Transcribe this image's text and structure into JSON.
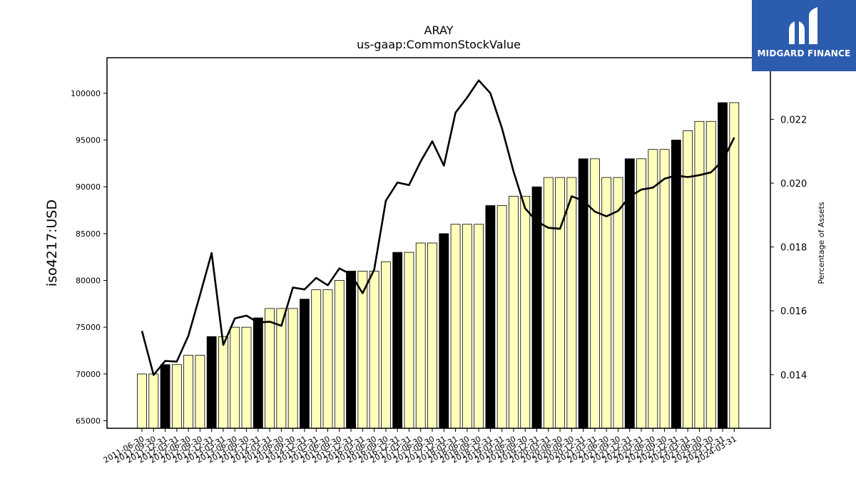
{
  "chart_data": {
    "type": "bar",
    "title": "ARAY",
    "subtitle": "us-gaap:CommonStockValue",
    "ylabel": "iso4217:USD",
    "y2label": "Percentage of Assets",
    "ylim": [
      64200,
      103800
    ],
    "y2lim": [
      0.01232,
      0.02393
    ],
    "yticks": [
      65000,
      70000,
      75000,
      80000,
      85000,
      90000,
      95000,
      100000
    ],
    "y2ticks": [
      "0.014",
      "0.016",
      "0.018",
      "0.020",
      "0.022"
    ],
    "categories": [
      "2011-06-30",
      "2011-09-30",
      "2011-12-31",
      "2012-03-31",
      "2012-06-30",
      "2012-09-30",
      "2012-12-31",
      "2013-03-31",
      "2013-06-30",
      "2013-09-30",
      "2013-12-31",
      "2014-03-31",
      "2014-06-30",
      "2014-09-30",
      "2014-12-31",
      "2015-03-31",
      "2015-06-30",
      "2015-09-30",
      "2015-12-31",
      "2016-03-31",
      "2016-06-30",
      "2016-09-30",
      "2016-12-31",
      "2017-03-31",
      "2017-06-30",
      "2017-09-30",
      "2017-12-31",
      "2018-03-31",
      "2018-06-30",
      "2018-09-30",
      "2018-12-31",
      "2019-03-31",
      "2019-06-30",
      "2019-09-30",
      "2019-12-31",
      "2020-03-31",
      "2020-06-30",
      "2020-09-30",
      "2020-12-31",
      "2021-03-31",
      "2021-06-30",
      "2021-09-30",
      "2021-12-31",
      "2022-03-31",
      "2022-06-30",
      "2022-09-30",
      "2022-12-31",
      "2023-03-31",
      "2023-06-30",
      "2023-09-30",
      "2023-12-31",
      "2024-03-31"
    ],
    "series": [
      {
        "values": [
          70000,
          70000,
          71000,
          71000,
          72000,
          72000,
          74000,
          74000,
          75000,
          75000,
          76000,
          77000,
          77000,
          77000,
          78000,
          79000,
          79000,
          80000,
          81000,
          81000,
          81000,
          82000,
          83000,
          83000,
          84000,
          84000,
          85000,
          86000,
          86000,
          86000,
          88000,
          88000,
          89000,
          89000,
          90000,
          91000,
          91000,
          91000,
          93000,
          93000,
          91000,
          91000,
          93000,
          93000,
          94000,
          94000,
          95000,
          96000,
          97000,
          97000,
          99000,
          99000
        ],
        "highlight": [
          false,
          false,
          true,
          false,
          false,
          false,
          true,
          false,
          false,
          false,
          true,
          false,
          false,
          false,
          true,
          false,
          false,
          false,
          true,
          false,
          false,
          false,
          true,
          false,
          false,
          false,
          true,
          false,
          false,
          false,
          true,
          false,
          false,
          false,
          true,
          false,
          false,
          false,
          true,
          false,
          false,
          false,
          true,
          false,
          false,
          false,
          true,
          false,
          false,
          false,
          true,
          false
        ]
      },
      {
        "values": [
          0.01537,
          0.01399,
          0.01443,
          0.01441,
          0.01522,
          0.0165,
          0.01781,
          0.01493,
          0.01576,
          0.01585,
          0.01563,
          0.01566,
          0.01553,
          0.01673,
          0.01667,
          0.01703,
          0.0168,
          0.01733,
          0.01714,
          0.01655,
          0.01729,
          0.01945,
          0.02002,
          0.01994,
          0.02068,
          0.02131,
          0.02055,
          0.02221,
          0.02268,
          0.02322,
          0.02282,
          0.02172,
          0.02036,
          0.01921,
          0.0188,
          0.0186,
          0.01857,
          0.01959,
          0.01945,
          0.01911,
          0.01896,
          0.01913,
          0.01958,
          0.0198,
          0.01986,
          0.02014,
          0.02024,
          0.02019,
          0.02025,
          0.02034,
          0.0207,
          0.02143
        ]
      }
    ],
    "bar_color": "#ffffbb",
    "highlight_color": "#000000",
    "line_color": "#000000",
    "legend": "none",
    "grid": false
  },
  "logo": {
    "text": "MIDGARD FINANCE",
    "background": "#2b5cae"
  }
}
